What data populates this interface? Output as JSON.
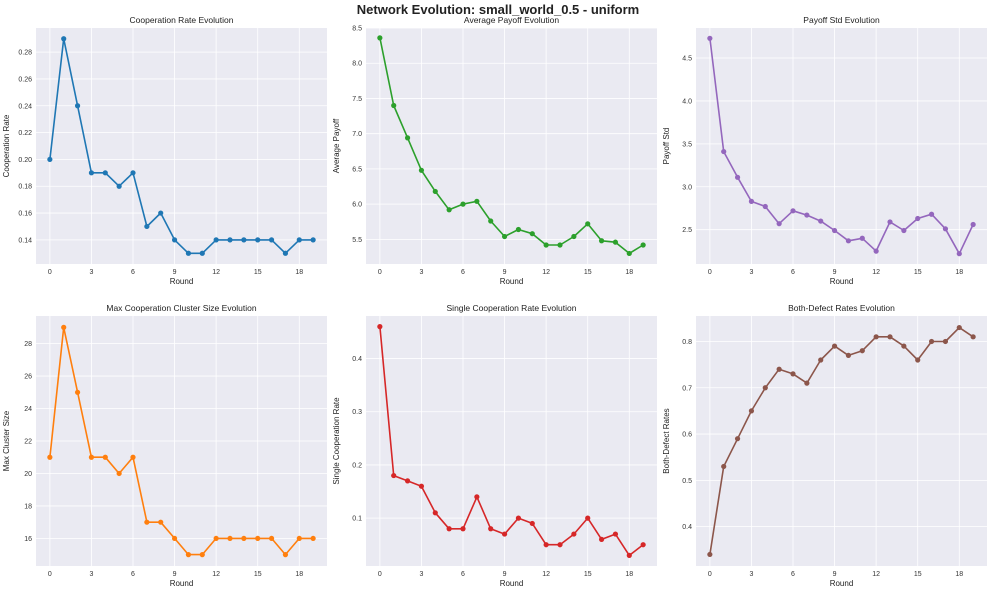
{
  "suptitle": "Network Evolution: small_world_0.5 - uniform",
  "chart_data": [
    {
      "type": "line",
      "title": "Cooperation Rate Evolution",
      "xlabel": "Round",
      "ylabel": "Cooperation Rate",
      "color": "#1f77b4",
      "xlim": [
        -1,
        20
      ],
      "ylim": [
        0.122,
        0.298
      ],
      "xticks": [
        0,
        3,
        6,
        9,
        12,
        15,
        18
      ],
      "xtick_labels": [
        "0",
        "3",
        "6",
        "9",
        "12",
        "15",
        "18"
      ],
      "yticks": [
        0.14,
        0.16,
        0.18,
        0.2,
        0.22,
        0.24,
        0.26,
        0.28
      ],
      "ytick_labels": [
        "0.14",
        "0.16",
        "0.18",
        "0.20",
        "0.22",
        "0.24",
        "0.26",
        "0.28"
      ],
      "x": [
        0,
        1,
        2,
        3,
        4,
        5,
        6,
        7,
        8,
        9,
        10,
        11,
        12,
        13,
        14,
        15,
        16,
        17,
        18,
        19
      ],
      "y": [
        0.2,
        0.29,
        0.24,
        0.19,
        0.19,
        0.18,
        0.19,
        0.15,
        0.16,
        0.14,
        0.13,
        0.13,
        0.14,
        0.14,
        0.14,
        0.14,
        0.14,
        0.13,
        0.14,
        0.14
      ]
    },
    {
      "type": "line",
      "title": "Average Payoff Evolution",
      "xlabel": "Round",
      "ylabel": "Average Payoff",
      "color": "#2ca02c",
      "xlim": [
        -1,
        20
      ],
      "ylim": [
        5.15,
        8.5
      ],
      "xticks": [
        0,
        3,
        6,
        9,
        12,
        15,
        18
      ],
      "xtick_labels": [
        "0",
        "3",
        "6",
        "9",
        "12",
        "15",
        "18"
      ],
      "yticks": [
        5.5,
        6.0,
        6.5,
        7.0,
        7.5,
        8.0,
        8.5
      ],
      "ytick_labels": [
        "5.5",
        "6.0",
        "6.5",
        "7.0",
        "7.5",
        "8.0",
        "8.5"
      ],
      "x": [
        0,
        1,
        2,
        3,
        4,
        5,
        6,
        7,
        8,
        9,
        10,
        11,
        12,
        13,
        14,
        15,
        16,
        17,
        18,
        19
      ],
      "y": [
        8.36,
        7.4,
        6.94,
        6.48,
        6.18,
        5.92,
        6.0,
        6.04,
        5.76,
        5.54,
        5.64,
        5.58,
        5.42,
        5.42,
        5.54,
        5.72,
        5.48,
        5.46,
        5.3,
        5.42
      ]
    },
    {
      "type": "line",
      "title": "Payoff Std Evolution",
      "xlabel": "Round",
      "ylabel": "Payoff Std",
      "color": "#9467bd",
      "xlim": [
        -1,
        20
      ],
      "ylim": [
        2.1,
        4.85
      ],
      "xticks": [
        0,
        3,
        6,
        9,
        12,
        15,
        18
      ],
      "xtick_labels": [
        "0",
        "3",
        "6",
        "9",
        "12",
        "15",
        "18"
      ],
      "yticks": [
        2.5,
        3.0,
        3.5,
        4.0,
        4.5
      ],
      "ytick_labels": [
        "2.5",
        "3.0",
        "3.5",
        "4.0",
        "4.5"
      ],
      "x": [
        0,
        1,
        2,
        3,
        4,
        5,
        6,
        7,
        8,
        9,
        10,
        11,
        12,
        13,
        14,
        15,
        16,
        17,
        18,
        19
      ],
      "y": [
        4.73,
        3.41,
        3.11,
        2.83,
        2.77,
        2.57,
        2.72,
        2.67,
        2.6,
        2.49,
        2.37,
        2.4,
        2.25,
        2.59,
        2.49,
        2.63,
        2.68,
        2.51,
        2.22,
        2.56
      ]
    },
    {
      "type": "line",
      "title": "Max Cooperation Cluster Size Evolution",
      "xlabel": "Round",
      "ylabel": "Max Cluster Size",
      "color": "#ff7f0e",
      "xlim": [
        -1,
        20
      ],
      "ylim": [
        14.3,
        29.7
      ],
      "xticks": [
        0,
        3,
        6,
        9,
        12,
        15,
        18
      ],
      "xtick_labels": [
        "0",
        "3",
        "6",
        "9",
        "12",
        "15",
        "18"
      ],
      "yticks": [
        16,
        18,
        20,
        22,
        24,
        26,
        28
      ],
      "ytick_labels": [
        "16",
        "18",
        "20",
        "22",
        "24",
        "26",
        "28"
      ],
      "x": [
        0,
        1,
        2,
        3,
        4,
        5,
        6,
        7,
        8,
        9,
        10,
        11,
        12,
        13,
        14,
        15,
        16,
        17,
        18,
        19
      ],
      "y": [
        21,
        29,
        25,
        21,
        21,
        20,
        21,
        17,
        17,
        16,
        15,
        15,
        16,
        16,
        16,
        16,
        16,
        15,
        16,
        16
      ]
    },
    {
      "type": "line",
      "title": "Single Cooperation Rate Evolution",
      "xlabel": "Round",
      "ylabel": "Single Cooperation Rate",
      "color": "#d62728",
      "xlim": [
        -1,
        20
      ],
      "ylim": [
        0.01,
        0.48
      ],
      "xticks": [
        0,
        3,
        6,
        9,
        12,
        15,
        18
      ],
      "xtick_labels": [
        "0",
        "3",
        "6",
        "9",
        "12",
        "15",
        "18"
      ],
      "yticks": [
        0.1,
        0.2,
        0.3,
        0.4
      ],
      "ytick_labels": [
        "0.1",
        "0.2",
        "0.3",
        "0.4"
      ],
      "x": [
        0,
        1,
        2,
        3,
        4,
        5,
        6,
        7,
        8,
        9,
        10,
        11,
        12,
        13,
        14,
        15,
        16,
        17,
        18,
        19
      ],
      "y": [
        0.46,
        0.18,
        0.17,
        0.16,
        0.11,
        0.08,
        0.08,
        0.14,
        0.08,
        0.07,
        0.1,
        0.09,
        0.05,
        0.05,
        0.07,
        0.1,
        0.06,
        0.07,
        0.03,
        0.05
      ]
    },
    {
      "type": "line",
      "title": "Both-Defect Rates Evolution",
      "xlabel": "Round",
      "ylabel": "Both-Defect Rates",
      "color": "#8c564b",
      "xlim": [
        -1,
        20
      ],
      "ylim": [
        0.315,
        0.855
      ],
      "xticks": [
        0,
        3,
        6,
        9,
        12,
        15,
        18
      ],
      "xtick_labels": [
        "0",
        "3",
        "6",
        "9",
        "12",
        "15",
        "18"
      ],
      "yticks": [
        0.4,
        0.5,
        0.6,
        0.7,
        0.8
      ],
      "ytick_labels": [
        "0.4",
        "0.5",
        "0.6",
        "0.7",
        "0.8"
      ],
      "x": [
        0,
        1,
        2,
        3,
        4,
        5,
        6,
        7,
        8,
        9,
        10,
        11,
        12,
        13,
        14,
        15,
        16,
        17,
        18,
        19
      ],
      "y": [
        0.34,
        0.53,
        0.59,
        0.65,
        0.7,
        0.74,
        0.73,
        0.71,
        0.76,
        0.79,
        0.77,
        0.78,
        0.81,
        0.81,
        0.79,
        0.76,
        0.8,
        0.8,
        0.83,
        0.81
      ]
    }
  ]
}
